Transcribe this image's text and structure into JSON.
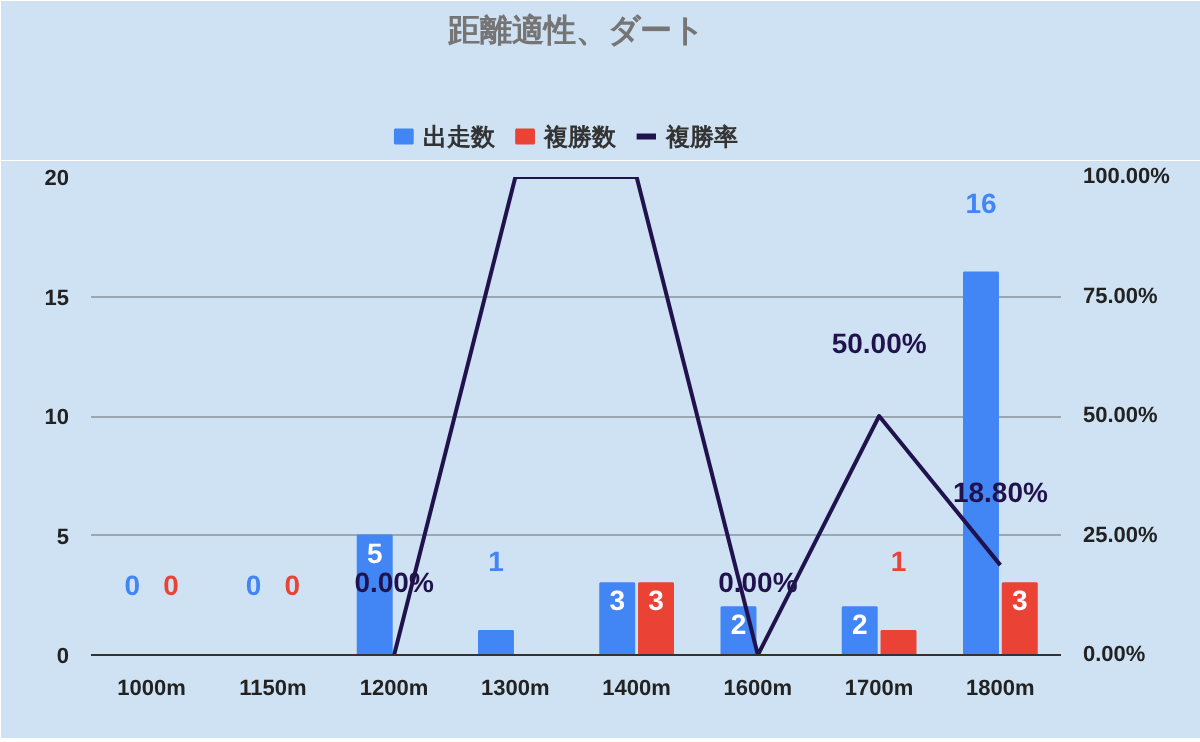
{
  "chart_data": {
    "type": "bar",
    "title": "距離適性、ダート",
    "categories": [
      "1000m",
      "1150m",
      "1200m",
      "1300m",
      "1400m",
      "1600m",
      "1700m",
      "1800m"
    ],
    "series": [
      {
        "name": "出走数",
        "color": "#4285f4",
        "values": [
          0,
          0,
          5,
          1,
          3,
          2,
          2,
          16
        ],
        "value_labels": [
          "0",
          "0",
          "5",
          "1",
          "3",
          "2",
          "2",
          "16"
        ]
      },
      {
        "name": "複勝数",
        "color": "#ea4335",
        "values": [
          0,
          0,
          0,
          0,
          3,
          0,
          1,
          3
        ],
        "value_labels": [
          "0",
          "0",
          null,
          null,
          "3",
          null,
          "1",
          "3"
        ]
      },
      {
        "name": "複勝率",
        "type": "line",
        "axis": "y2",
        "color": "#20124d",
        "values": [
          null,
          null,
          0,
          100,
          100,
          0,
          50,
          18.8
        ],
        "value_labels": [
          null,
          null,
          "0.00%",
          null,
          null,
          "0.00%",
          "50.00%",
          "18.80%"
        ]
      }
    ],
    "ylim": [
      0,
      20
    ],
    "yticks": [
      0,
      5,
      10,
      15,
      20
    ],
    "y2lim": [
      0,
      100
    ],
    "y2ticks": [
      {
        "value": 0,
        "label": "0.00%"
      },
      {
        "value": 25,
        "label": "25.00%"
      },
      {
        "value": 50,
        "label": "50.00%"
      },
      {
        "value": 75,
        "label": "75.00%"
      },
      {
        "value": 100,
        "label": "100.00%"
      }
    ],
    "grid": "y",
    "legend": "top"
  }
}
